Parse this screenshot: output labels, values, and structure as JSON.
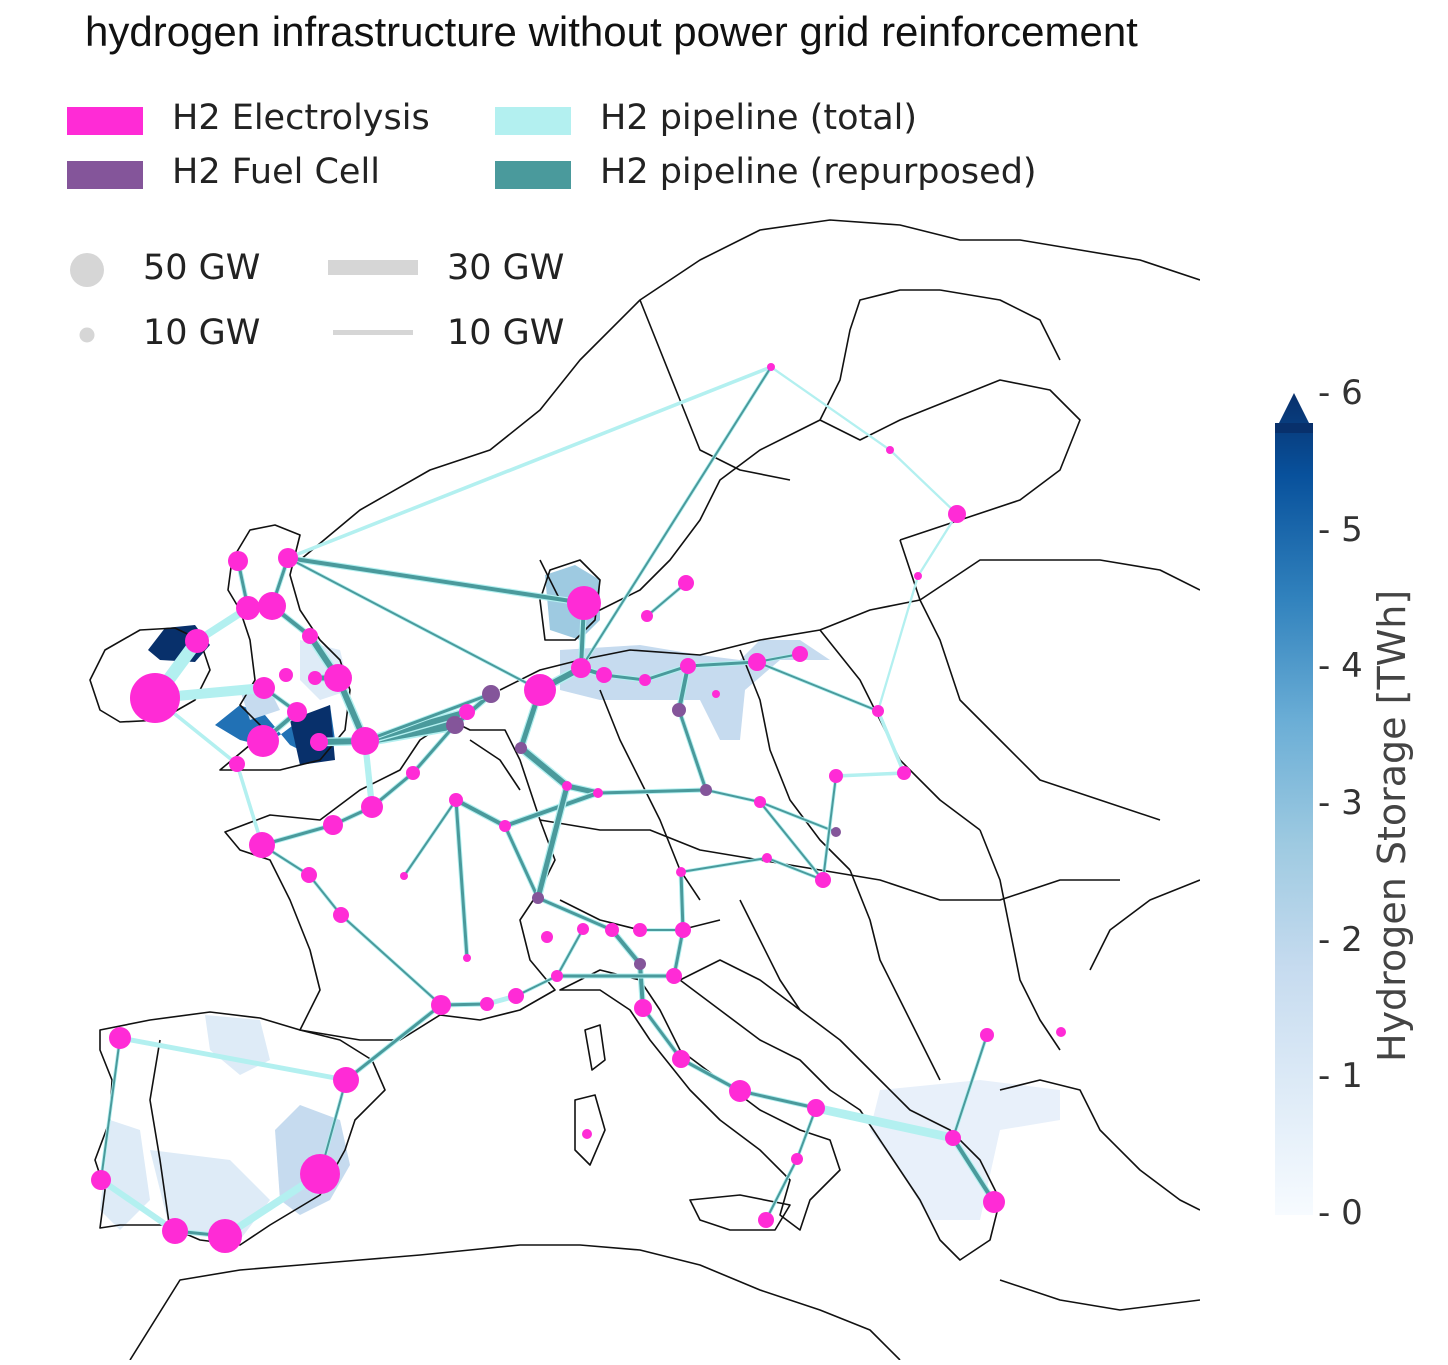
{
  "title": "hydrogen infrastructure without power grid reinforcement",
  "legend": {
    "technologies": [
      {
        "label": "H2 Electrolysis",
        "color": "#ff2bd6"
      },
      {
        "label": "H2 Fuel Cell",
        "color": "#84559a"
      },
      {
        "label": "H2 pipeline (total)",
        "color": "#b3f0f0"
      },
      {
        "label": "H2 pipeline (repurposed)",
        "color": "#4a9a9c"
      }
    ],
    "bus_sizes": [
      {
        "label": "50 GW",
        "value_gw": 50
      },
      {
        "label": "10 GW",
        "value_gw": 10
      }
    ],
    "line_sizes": [
      {
        "label": "30 GW",
        "value_gw": 30
      },
      {
        "label": "10 GW",
        "value_gw": 10
      }
    ]
  },
  "colorbar": {
    "label": "Hydrogen Storage [TWh]",
    "ticks": [
      "0",
      "1",
      "2",
      "3",
      "4",
      "5",
      "6"
    ],
    "min": 0,
    "max": 6,
    "extend": "max",
    "colormap": "Blues"
  },
  "map": {
    "region": "Europe",
    "coastline_color": "#000000",
    "electrolysis_color": "#ff2bd6",
    "fuel_cell_color": "#84559a",
    "pipeline_total_color": "#b3f0f0",
    "pipeline_repurposed_color": "#4a9a9c"
  }
}
